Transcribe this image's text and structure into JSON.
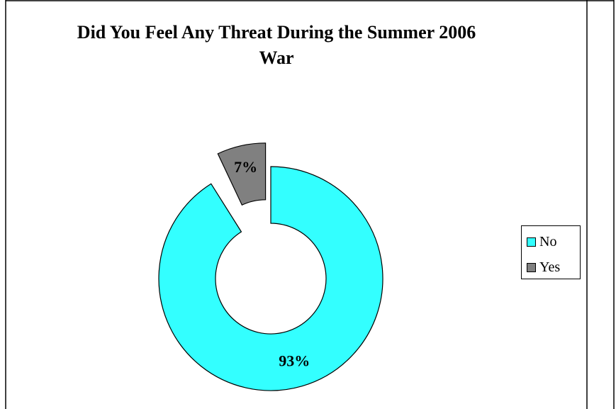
{
  "chart_data": {
    "type": "pie",
    "style": "doughnut-exploded",
    "title": "Did You Feel Any Threat During the Summer 2006 War",
    "title_lines": [
      "Did You Feel Any Threat During the Summer 2006",
      "War"
    ],
    "slices": [
      {
        "label": "No",
        "value": 93,
        "display": "93%",
        "color": "#33ffff"
      },
      {
        "label": "Yes",
        "value": 7,
        "display": "7%",
        "color": "#808080"
      }
    ],
    "legend": {
      "placement": "right",
      "entries": [
        "No",
        "Yes"
      ]
    }
  }
}
